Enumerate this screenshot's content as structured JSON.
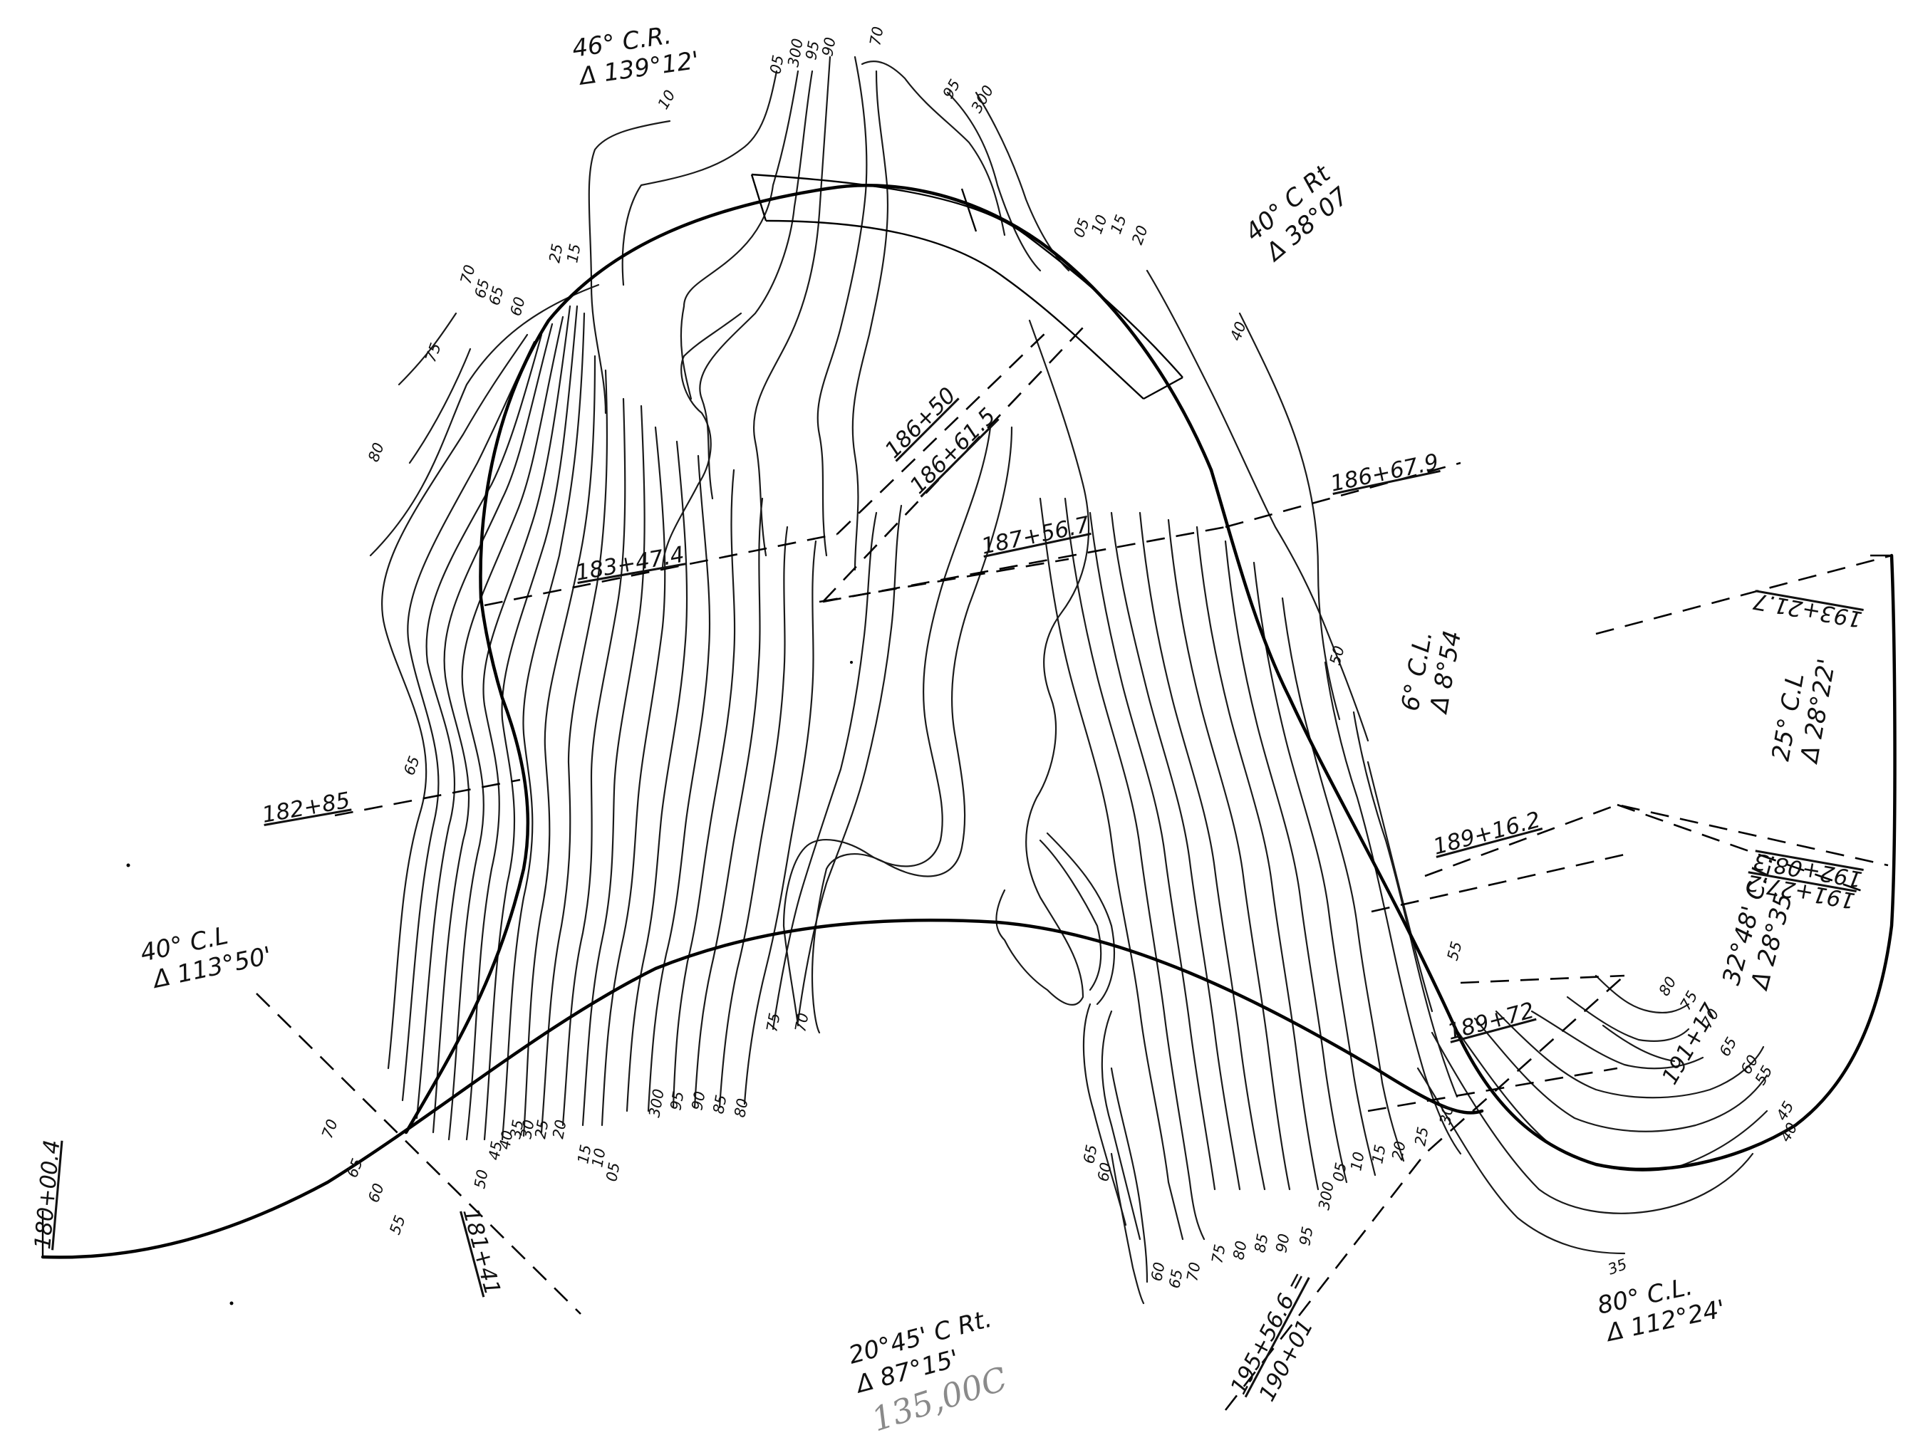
{
  "curves": [
    {
      "id": "c1",
      "line1": "46° C.R.",
      "line2": "Δ 139°12'"
    },
    {
      "id": "c2",
      "line1": "40° C Rt",
      "line2": "Δ 38°07"
    },
    {
      "id": "c3",
      "line1": "6° C.L.",
      "line2": "Δ 8°54"
    },
    {
      "id": "c4",
      "line1": "25° C.L",
      "line2": "Δ 28°22'"
    },
    {
      "id": "c5",
      "line1": "32°48' C.L.",
      "line2": "Δ 28°35"
    },
    {
      "id": "c6",
      "line1": "40° C.L",
      "line2": "Δ 113°50'"
    },
    {
      "id": "c7",
      "line1": "20°45' C Rt.",
      "line2": "Δ 87°15'"
    },
    {
      "id": "c8",
      "line1": "80° C.L.",
      "line2": "Δ 112°24'"
    }
  ],
  "stations": {
    "s180": "180+00.4",
    "s181": "181+41",
    "s182": "182+85",
    "s183": "183+47.4",
    "s186a": "186+50",
    "s186b": "186+61.5",
    "s186c": "186+67.9",
    "s187": "187+56.7",
    "s189a": "189+16.2",
    "s189b": "189+72",
    "s191": "191+17",
    "s192a": "192+08.3",
    "s192b": "191+27.2",
    "s193": "193+21.7",
    "s195_top": "195+56.6 =",
    "s195_bottom": "190+01"
  },
  "pencil_note": "135,00C",
  "contour_labels_top": [
    "10",
    "05",
    "300",
    "95",
    "90",
    "70",
    "95",
    "300",
    "25",
    "15",
    "70",
    "65",
    "65",
    "60",
    "75",
    "80",
    "05",
    "10",
    "15",
    "20",
    "40"
  ],
  "contour_labels_bottom_left": [
    "70",
    "65",
    "60",
    "55",
    "50",
    "45",
    "40",
    "35",
    "30",
    "25",
    "20",
    "15",
    "10",
    "05",
    "300",
    "95",
    "90",
    "85",
    "80",
    "75",
    "70",
    "65"
  ],
  "contour_labels_bottom_right": [
    "65",
    "60",
    "60",
    "65",
    "70",
    "75",
    "80",
    "85",
    "90",
    "95",
    "300",
    "05",
    "10",
    "15",
    "20",
    "25",
    "30",
    "35",
    "40",
    "45",
    "50",
    "55",
    "55",
    "60",
    "65",
    "70",
    "75",
    "80"
  ]
}
